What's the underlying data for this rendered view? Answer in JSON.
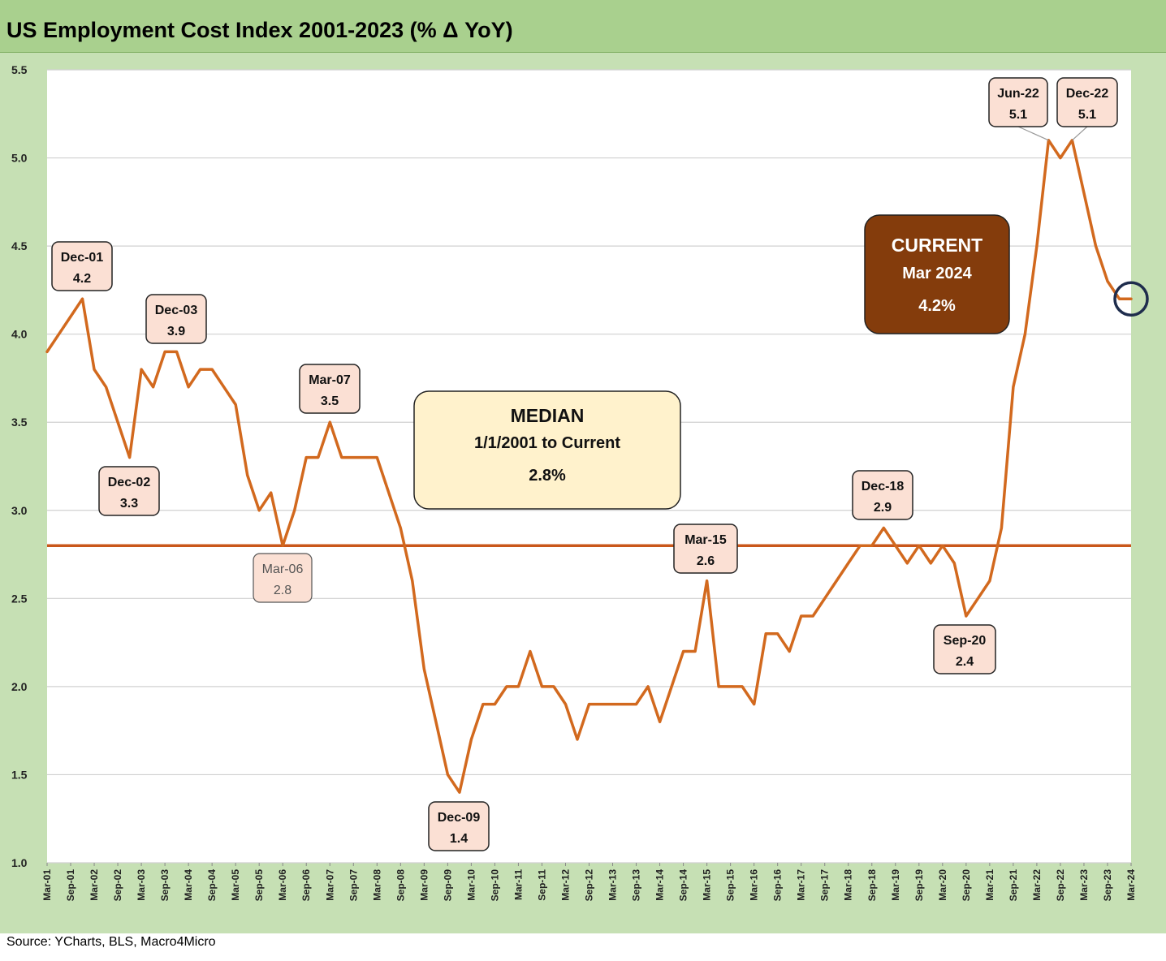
{
  "title": "US Employment Cost Index 2001-2023 (% Δ YoY)",
  "source": "Source: YCharts, BLS, Macro4Micro",
  "colors": {
    "line": "#d2691e",
    "median_line": "#c9571b",
    "current_box": "#843c0c",
    "median_box": "#fff2cc",
    "annotation_box": "#fbe0d4",
    "circle": "#1f2d4d"
  },
  "median_box": {
    "title": "MEDIAN",
    "range": "1/1/2001 to Current",
    "value": "2.8%"
  },
  "current_box": {
    "title": "CURRENT",
    "date": "Mar 2024",
    "value": "4.2%"
  },
  "chart_data": {
    "type": "line",
    "title": "US Employment Cost Index 2001-2023 (% Δ YoY)",
    "ylim": [
      1.0,
      5.5
    ],
    "y_ticks": [
      "1.0",
      "1.5",
      "2.0",
      "2.5",
      "3.0",
      "3.5",
      "4.0",
      "4.5",
      "5.0",
      "5.5"
    ],
    "x_tick_labels": [
      "Mar-01",
      "Sep-01",
      "Mar-02",
      "Sep-02",
      "Mar-03",
      "Sep-03",
      "Mar-04",
      "Sep-04",
      "Mar-05",
      "Sep-05",
      "Mar-06",
      "Sep-06",
      "Mar-07",
      "Sep-07",
      "Mar-08",
      "Sep-08",
      "Mar-09",
      "Sep-09",
      "Mar-10",
      "Sep-10",
      "Mar-11",
      "Sep-11",
      "Mar-12",
      "Sep-12",
      "Mar-13",
      "Sep-13",
      "Mar-14",
      "Sep-14",
      "Mar-15",
      "Sep-15",
      "Mar-16",
      "Sep-16",
      "Mar-17",
      "Sep-17",
      "Mar-18",
      "Sep-18",
      "Mar-19",
      "Sep-19",
      "Mar-20",
      "Sep-20",
      "Mar-21",
      "Sep-21",
      "Mar-22",
      "Sep-22",
      "Mar-23",
      "Sep-23",
      "Mar-24"
    ],
    "grid": true,
    "median": 2.8,
    "series": [
      {
        "x": [
          "Mar-01",
          "Jun-01",
          "Sep-01",
          "Dec-01",
          "Mar-02",
          "Jun-02",
          "Sep-02",
          "Dec-02",
          "Mar-03",
          "Jun-03",
          "Sep-03",
          "Dec-03",
          "Mar-04",
          "Jun-04",
          "Sep-04",
          "Dec-04",
          "Mar-05",
          "Jun-05",
          "Sep-05",
          "Dec-05",
          "Mar-06",
          "Jun-06",
          "Sep-06",
          "Dec-06",
          "Mar-07",
          "Jun-07",
          "Sep-07",
          "Dec-07",
          "Mar-08",
          "Jun-08",
          "Sep-08",
          "Dec-08",
          "Mar-09",
          "Jun-09",
          "Sep-09",
          "Dec-09",
          "Mar-10",
          "Jun-10",
          "Sep-10",
          "Dec-10",
          "Mar-11",
          "Jun-11",
          "Sep-11",
          "Dec-11",
          "Mar-12",
          "Jun-12",
          "Sep-12",
          "Dec-12",
          "Mar-13",
          "Jun-13",
          "Sep-13",
          "Dec-13",
          "Mar-14",
          "Jun-14",
          "Sep-14",
          "Dec-14",
          "Mar-15",
          "Jun-15",
          "Sep-15",
          "Dec-15",
          "Mar-16",
          "Jun-16",
          "Sep-16",
          "Dec-16",
          "Mar-17",
          "Jun-17",
          "Sep-17",
          "Dec-17",
          "Mar-18",
          "Jun-18",
          "Sep-18",
          "Dec-18",
          "Mar-19",
          "Jun-19",
          "Sep-19",
          "Dec-19",
          "Mar-20",
          "Jun-20",
          "Sep-20",
          "Dec-20",
          "Mar-21",
          "Jun-21",
          "Sep-21",
          "Dec-21",
          "Mar-22",
          "Jun-22",
          "Sep-22",
          "Dec-22",
          "Mar-23",
          "Jun-23",
          "Sep-23",
          "Dec-23",
          "Mar-24"
        ],
        "values": [
          3.9,
          4.0,
          4.1,
          4.2,
          3.8,
          3.7,
          3.5,
          3.3,
          3.8,
          3.7,
          3.9,
          3.9,
          3.7,
          3.8,
          3.8,
          3.7,
          3.6,
          3.2,
          3.0,
          3.1,
          2.8,
          3.0,
          3.3,
          3.3,
          3.5,
          3.3,
          3.3,
          3.3,
          3.3,
          3.1,
          2.9,
          2.6,
          2.1,
          1.8,
          1.5,
          1.4,
          1.7,
          1.9,
          1.9,
          2.0,
          2.0,
          2.2,
          2.0,
          2.0,
          1.9,
          1.7,
          1.9,
          1.9,
          1.9,
          1.9,
          1.9,
          2.0,
          1.8,
          2.0,
          2.2,
          2.2,
          2.6,
          2.0,
          2.0,
          2.0,
          1.9,
          2.3,
          2.3,
          2.2,
          2.4,
          2.4,
          2.5,
          2.6,
          2.7,
          2.8,
          2.8,
          2.9,
          2.8,
          2.7,
          2.8,
          2.7,
          2.8,
          2.7,
          2.4,
          2.5,
          2.6,
          2.9,
          3.7,
          4.0,
          4.5,
          5.1,
          5.0,
          5.1,
          4.8,
          4.5,
          4.3,
          4.2,
          4.2
        ]
      }
    ],
    "annotations": [
      {
        "label": "Dec-01",
        "value": "4.2"
      },
      {
        "label": "Dec-02",
        "value": "3.3"
      },
      {
        "label": "Dec-03",
        "value": "3.9"
      },
      {
        "label": "Mar-06",
        "value": "2.8"
      },
      {
        "label": "Mar-07",
        "value": "3.5"
      },
      {
        "label": "Dec-09",
        "value": "1.4"
      },
      {
        "label": "Mar-15",
        "value": "2.6"
      },
      {
        "label": "Dec-18",
        "value": "2.9"
      },
      {
        "label": "Sep-20",
        "value": "2.4"
      },
      {
        "label": "Jun-22",
        "value": "5.1"
      },
      {
        "label": "Dec-22",
        "value": "5.1"
      }
    ]
  }
}
